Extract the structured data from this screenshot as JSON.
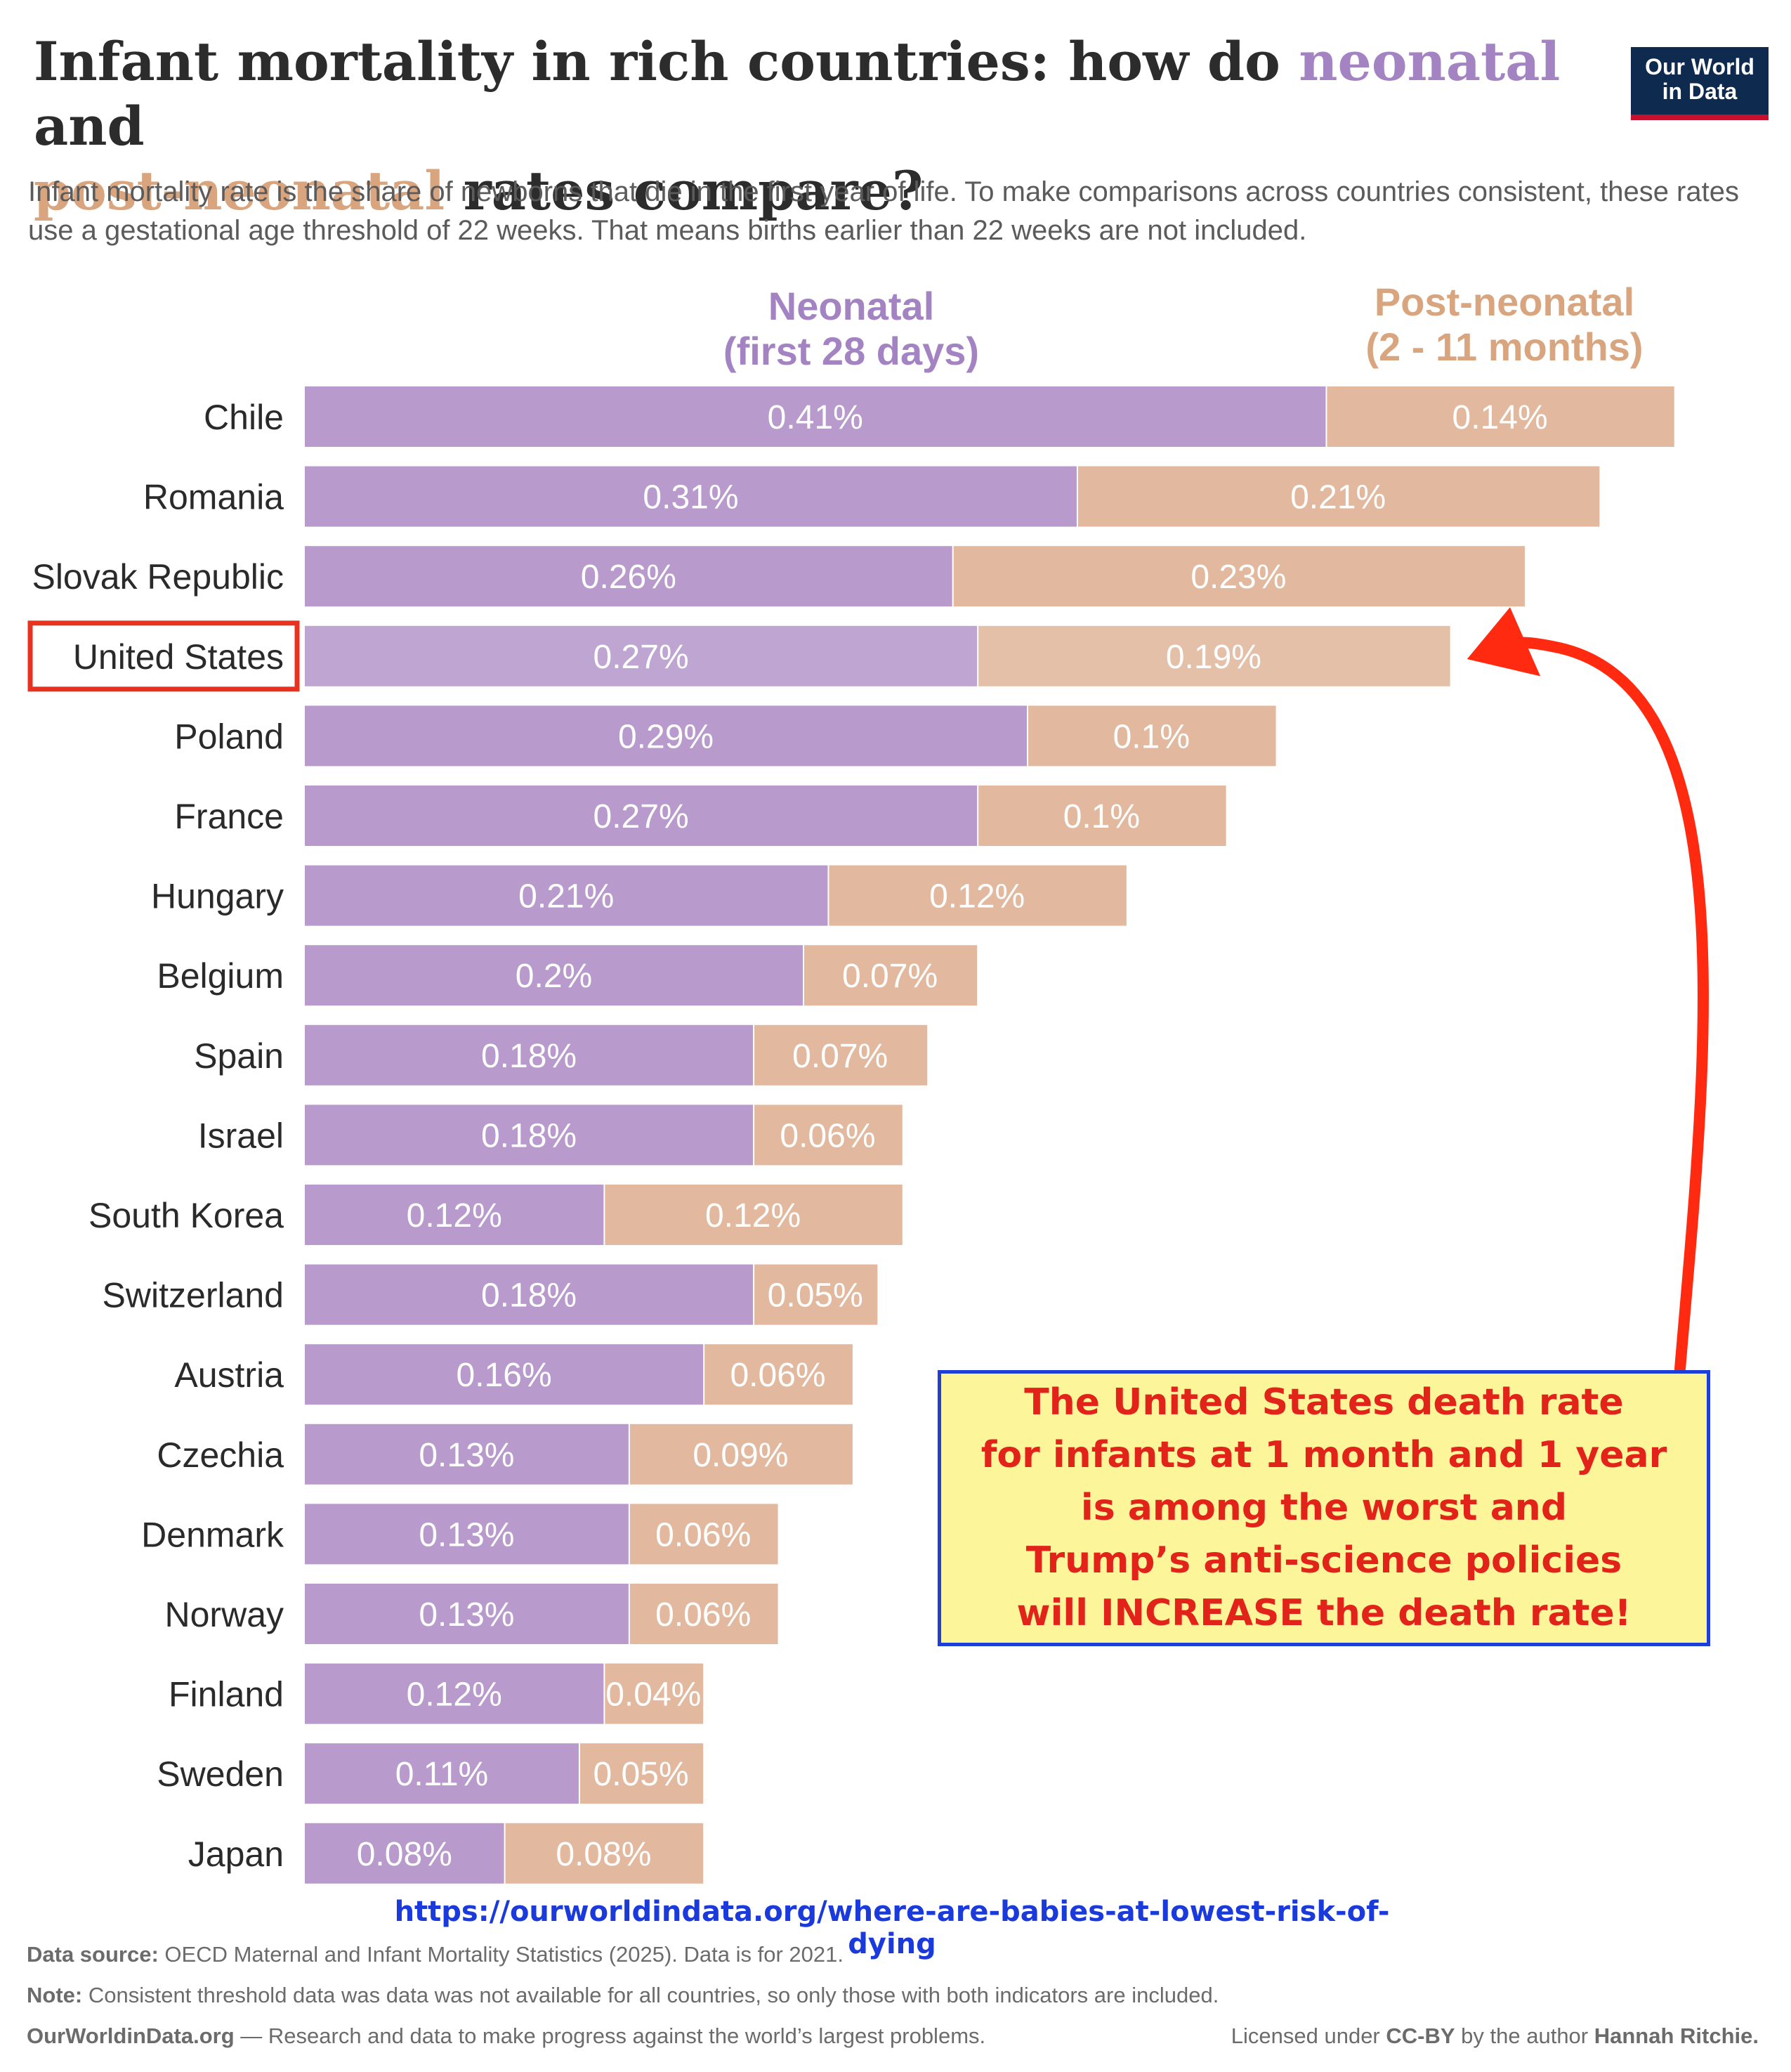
{
  "title": {
    "part1": "Infant mortality in rich countries: how do ",
    "neo_word": "neonatal",
    "part2": " and",
    "post_word": "post-neonatal",
    "part3": " rates compare?"
  },
  "logo": {
    "line1": "Our World",
    "line2": "in Data"
  },
  "subtitle": "Infant mortality rate is the share of newborns that die in the first year of life. To make comparisons across countries consistent, these rates use a gestational age threshold of 22 weeks. That means births earlier than 22 weeks are not included.",
  "colors": {
    "neonatal": "#b89bcc",
    "post_neonatal": "#e2b99e",
    "neonatal_header": "#a383c2",
    "post_header": "#d9a57f",
    "highlight_box": "#e8321f",
    "arrow": "#ff2a10",
    "callout_text": "#e2231a",
    "callout_bg": "#fdf59a",
    "callout_border": "#1d3fd6",
    "url": "#1a3adb"
  },
  "chart_data": {
    "type": "bar",
    "orientation": "horizontal",
    "stacked": true,
    "categories": [
      "Chile",
      "Romania",
      "Slovak Republic",
      "United States",
      "Poland",
      "France",
      "Hungary",
      "Belgium",
      "Spain",
      "Israel",
      "South Korea",
      "Switzerland",
      "Austria",
      "Czechia",
      "Denmark",
      "Norway",
      "Finland",
      "Sweden",
      "Japan"
    ],
    "series": [
      {
        "name": "Neonatal\n(first 28 days)",
        "values": [
          0.41,
          0.31,
          0.26,
          0.27,
          0.29,
          0.27,
          0.21,
          0.2,
          0.18,
          0.18,
          0.12,
          0.18,
          0.16,
          0.13,
          0.13,
          0.13,
          0.12,
          0.11,
          0.08
        ],
        "labels": [
          "0.41%",
          "0.31%",
          "0.26%",
          "0.27%",
          "0.29%",
          "0.27%",
          "0.21%",
          "0.2%",
          "0.18%",
          "0.18%",
          "0.12%",
          "0.18%",
          "0.16%",
          "0.13%",
          "0.13%",
          "0.13%",
          "0.12%",
          "0.11%",
          "0.08%"
        ]
      },
      {
        "name": "Post-neonatal\n(2 - 11 months)",
        "values": [
          0.14,
          0.21,
          0.23,
          0.19,
          0.1,
          0.1,
          0.12,
          0.07,
          0.07,
          0.06,
          0.12,
          0.05,
          0.06,
          0.09,
          0.06,
          0.06,
          0.04,
          0.05,
          0.08
        ],
        "labels": [
          "0.14%",
          "0.21%",
          "0.23%",
          "0.19%",
          "0.1%",
          "0.1%",
          "0.12%",
          "0.07%",
          "0.07%",
          "0.06%",
          "0.12%",
          "0.05%",
          "0.06%",
          "0.09%",
          "0.06%",
          "0.06%",
          "0.04%",
          "0.05%",
          "0.08%"
        ]
      }
    ],
    "highlighted_category": "United States",
    "xaxis": "none",
    "grid": false
  },
  "callout": {
    "text": "The United States death rate\nfor infants at 1 month and 1 year\nis among the worst and\nTrump’s anti-science policies\nwill INCREASE the death rate!"
  },
  "url": "https://ourworldindata.org/where-are-babies-at-lowest-risk-of-dying",
  "footer": {
    "source_label": "Data source:",
    "source_text": " OECD Maternal and Infant Mortality Statistics (2025). Data is for 2021.",
    "note_label": "Note:",
    "note_text": " Consistent threshold data was data was not available for all countries, so only those with both indicators are included.",
    "site": "OurWorldinData.org",
    "tagline": " — Research and data to make progress against the world’s largest problems.",
    "license_prefix": "Licensed under ",
    "license": "CC-BY",
    "license_mid": " by the author ",
    "author": "Hannah Ritchie."
  }
}
